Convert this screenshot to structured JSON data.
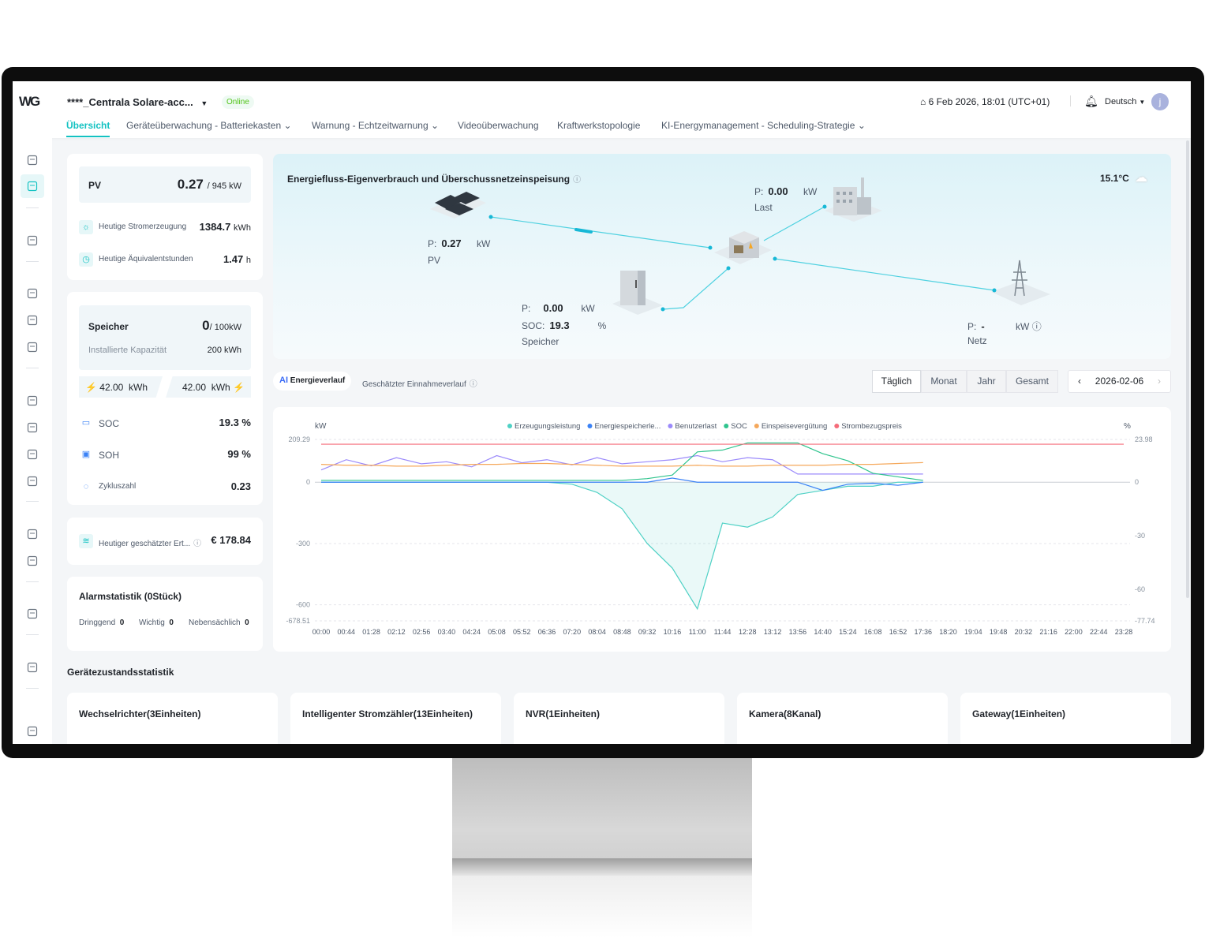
{
  "header": {
    "logo": "WG",
    "station": "****_Centrala Solare-acc...",
    "status": "Online",
    "datetime": "6 Feb 2026, 18:01 (UTC+01)",
    "language": "Deutsch",
    "avatar": "j",
    "tabs": [
      "Übersicht",
      "Geräteüberwachung - Batteriekasten",
      "Warnung - Echtzeitwarnung",
      "Videoüberwachung",
      "Kraftwerkstopologie",
      "KI-Energymanagement - Scheduling-Strategie"
    ]
  },
  "sidebar": {
    "icons": [
      "leaf-icon",
      "solar-icon",
      "alarm-icon",
      "clipboard-icon",
      "calendar-icon",
      "report-icon",
      "sliders-icon",
      "chart-icon",
      "gantt-icon",
      "monitor-chart-icon",
      "document-icon",
      "search-document-icon",
      "currency-icon",
      "home-icon",
      "menu-collapse-icon"
    ]
  },
  "pv": {
    "title": "PV",
    "value": "0.27",
    "capacity": "/ 945 kW",
    "gen_label": "Heutige Stromerzeugung",
    "gen_value": "1384.7",
    "gen_unit": "kWh",
    "hours_label": "Heutige Äquivalentstunden",
    "hours_value": "1.47",
    "hours_unit": "h"
  },
  "storage": {
    "title": "Speicher",
    "value": "0",
    "capacity": "/ 100kW",
    "cap_label": "Installierte Kapazität",
    "cap_value": "200 kWh",
    "charge": "42.00",
    "charge_unit": "kWh",
    "discharge": "42.00",
    "discharge_unit": "kWh",
    "soc_label": "SOC",
    "soc_value": "19.3 %",
    "soh_label": "SOH",
    "soh_value": "99 %",
    "cycles_label": "Zykluszahl",
    "cycles_value": "0.23"
  },
  "revenue": {
    "label": "Heutiger geschätzter Ert...",
    "value": "€ 178.84"
  },
  "alarms": {
    "title": "Alarmstatistik (0Stück)",
    "items": [
      {
        "label": "Dringgend",
        "count": "0"
      },
      {
        "label": "Wichtig",
        "count": "0"
      },
      {
        "label": "Nebensächlich",
        "count": "0"
      }
    ]
  },
  "flow": {
    "title": "Energiefluss-Eigenverbrauch und Überschussnetzeinspeisung",
    "temperature": "15.1°C",
    "pv": {
      "p_label": "P:",
      "p": "0.27",
      "unit": "kW",
      "name": "PV"
    },
    "load": {
      "p_label": "P:",
      "p": "0.00",
      "unit": "kW",
      "name": "Last"
    },
    "storage": {
      "p_label": "P:",
      "p": "0.00",
      "unit": "kW",
      "soc_label": "SOC:",
      "soc": "19.3",
      "soc_unit": "%",
      "name": "Speicher"
    },
    "grid": {
      "p_label": "P:",
      "p": "-",
      "unit": "kW",
      "name": "Netz"
    }
  },
  "chart_tabs": {
    "active": "Energieverlauf",
    "ai_badge": "AI",
    "other": "Geschätzter Einnahmeverlauf",
    "periods": [
      "Täglich",
      "Monat",
      "Jahr",
      "Gesamt"
    ],
    "active_period": "Täglich",
    "date": "2026-02-06"
  },
  "chart_data": {
    "type": "line",
    "ylabel_left": "kW",
    "ylabel_right": "%",
    "ylim_left": [
      -678.51,
      209.29
    ],
    "ylim_right": [
      -77.74,
      23.98
    ],
    "yticks_left": [
      "209.29",
      "0",
      "-300",
      "-600",
      "-678.51"
    ],
    "yticks_right": [
      "23.98",
      "0",
      "-30",
      "-60",
      "-77.74"
    ],
    "grid": true,
    "legend": "top-center",
    "x": [
      "00:00",
      "00:44",
      "01:28",
      "02:12",
      "02:56",
      "03:40",
      "04:24",
      "05:08",
      "05:52",
      "06:36",
      "07:20",
      "08:04",
      "08:48",
      "09:32",
      "10:16",
      "11:00",
      "11:44",
      "12:28",
      "13:12",
      "13:56",
      "14:40",
      "15:24",
      "16:08",
      "16:52",
      "17:36",
      "18:20",
      "19:04",
      "19:48",
      "20:32",
      "21:16",
      "22:00",
      "22:44",
      "23:28"
    ],
    "series": [
      {
        "name": "Erzeugungsleistung",
        "color": "#4fd1c5",
        "axis": "left",
        "values": [
          0,
          0,
          0,
          0,
          0,
          0,
          0,
          0,
          0,
          0,
          -10,
          -50,
          -130,
          -300,
          -420,
          -620,
          -200,
          -220,
          -170,
          -60,
          -40,
          -20,
          -20,
          0,
          0,
          null,
          null,
          null,
          null,
          null,
          null,
          null,
          null
        ]
      },
      {
        "name": "Energiespeicherle...",
        "color": "#3b82f6",
        "axis": "left",
        "values": [
          0,
          0,
          0,
          0,
          0,
          0,
          0,
          0,
          0,
          0,
          0,
          0,
          0,
          0,
          20,
          0,
          0,
          0,
          0,
          0,
          -40,
          -10,
          -5,
          -15,
          0,
          null,
          null,
          null,
          null,
          null,
          null,
          null,
          null
        ]
      },
      {
        "name": "Benutzerlast",
        "color": "#9b8afb",
        "axis": "left",
        "values": [
          60,
          110,
          80,
          120,
          90,
          100,
          75,
          130,
          95,
          110,
          85,
          120,
          90,
          100,
          110,
          130,
          100,
          120,
          110,
          40,
          40,
          40,
          40,
          40,
          40,
          null,
          null,
          null,
          null,
          null,
          null,
          null,
          null
        ]
      },
      {
        "name": "SOC",
        "color": "#2fc48d",
        "axis": "right",
        "values": [
          1,
          1,
          1,
          1,
          1,
          1,
          1,
          1,
          1,
          1,
          1,
          1,
          1,
          2,
          4,
          17,
          18,
          22,
          22,
          22,
          16,
          12,
          5,
          3,
          1,
          null,
          null,
          null,
          null,
          null,
          null,
          null,
          null
        ]
      },
      {
        "name": "Einspeisevergütung",
        "color": "#f5a85b",
        "axis": "right",
        "values": [
          10,
          9.5,
          9.5,
          9,
          9,
          9.5,
          10,
          10,
          10.5,
          10.5,
          10,
          9.5,
          9,
          9,
          9,
          9.5,
          9,
          9,
          9.5,
          9.5,
          9.5,
          10,
          10,
          10.5,
          11,
          null,
          null,
          null,
          null,
          null,
          null,
          null,
          null
        ]
      },
      {
        "name": "Strombezugspreis",
        "color": "#f56c7a",
        "axis": "right",
        "values": [
          21.3,
          21.3,
          21.3,
          21.3,
          21.3,
          21.3,
          21.3,
          21.3,
          21.3,
          21.3,
          21.3,
          21.3,
          21.3,
          21.3,
          21.3,
          21.3,
          21.3,
          21.3,
          21.3,
          21.3,
          21.3,
          21.3,
          21.3,
          21.3,
          21.3,
          21.3,
          21.3,
          21.3,
          21.3,
          21.3,
          21.3,
          21.3,
          21.3
        ]
      }
    ]
  },
  "devices": {
    "title": "Gerätezustandsstatistik",
    "cards": [
      "Wechselrichter(3Einheiten)",
      "Intelligenter Stromzähler(13Einheiten)",
      "NVR(1Einheiten)",
      "Kamera(8Kanal)",
      "Gateway(1Einheiten)"
    ]
  }
}
